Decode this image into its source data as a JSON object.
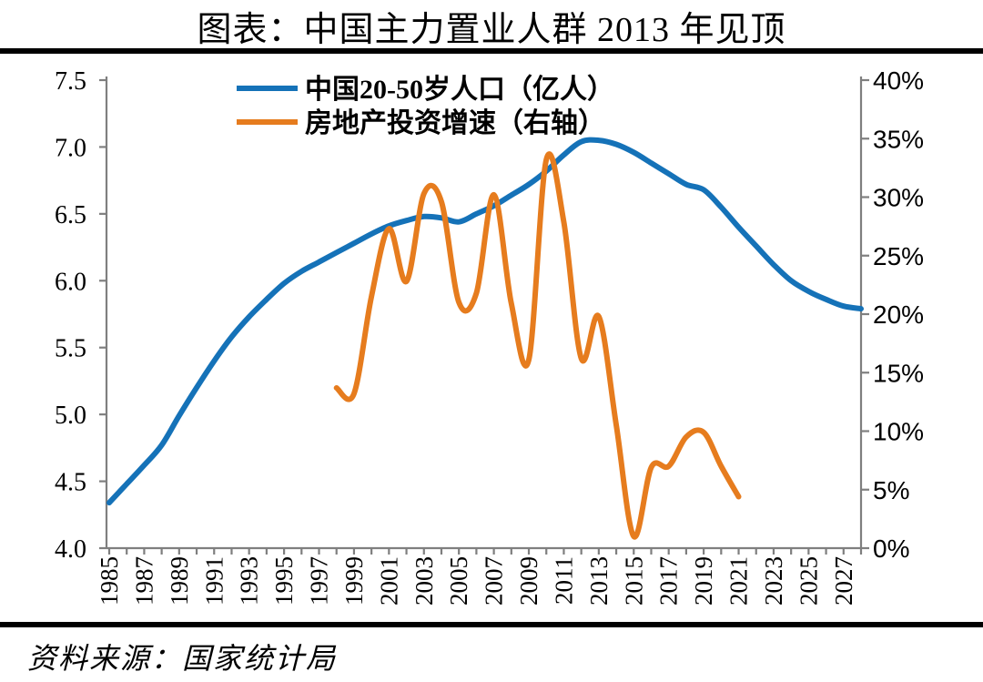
{
  "header": {
    "title": "图表：中国主力置业人群 2013 年见顶"
  },
  "footer": {
    "source": "资料来源：国家统计局"
  },
  "chart_data": {
    "type": "line",
    "title": "图表：中国主力置业人群 2013 年见顶",
    "legend_position": "top-center-inside",
    "grid": "off",
    "x_axis": {
      "range": [
        1985,
        2028
      ],
      "tick_step_years": 1,
      "tick_labels": [
        "1985",
        "1987",
        "1989",
        "1991",
        "1993",
        "1995",
        "1997",
        "1999",
        "2001",
        "2003",
        "2005",
        "2007",
        "2009",
        "2011",
        "2013",
        "2015",
        "2017",
        "2019",
        "2021",
        "2023",
        "2025",
        "2027"
      ]
    },
    "left_axis": {
      "range": [
        4.0,
        7.5
      ],
      "tick_labels": [
        "7.5",
        "7.0",
        "6.5",
        "6.0",
        "5.5",
        "5.0",
        "4.5",
        "4.0"
      ]
    },
    "right_axis": {
      "range": [
        0,
        40
      ],
      "tick_labels": [
        "40%",
        "35%",
        "30%",
        "25%",
        "20%",
        "15%",
        "10%",
        "5%",
        "0%"
      ]
    },
    "series": [
      {
        "name": "中国20-50岁人口（亿人）",
        "axis": "left",
        "color": "#1572b8",
        "x_start": 1985,
        "years_span": [
          1985,
          2028
        ],
        "values": [
          4.34,
          4.48,
          4.62,
          4.77,
          4.99,
          5.2,
          5.4,
          5.58,
          5.73,
          5.86,
          5.98,
          6.07,
          6.14,
          6.21,
          6.28,
          6.35,
          6.41,
          6.45,
          6.48,
          6.47,
          6.44,
          6.5,
          6.56,
          6.64,
          6.72,
          6.82,
          6.94,
          7.04,
          7.05,
          7.02,
          6.96,
          6.88,
          6.8,
          6.72,
          6.68,
          6.55,
          6.4,
          6.26,
          6.12,
          6.0,
          5.92,
          5.86,
          5.81,
          5.79
        ]
      },
      {
        "name": "房地产投资增速（右轴）",
        "axis": "right",
        "color": "#e67c1e",
        "x_start": 1998,
        "years_span": [
          1998,
          2021
        ],
        "values": [
          13.7,
          13.2,
          21.5,
          27.3,
          22.8,
          30.3,
          29.6,
          21.0,
          21.8,
          30.2,
          20.9,
          16.1,
          33.2,
          27.9,
          16.2,
          19.8,
          10.5,
          1.0,
          6.9,
          7.0,
          9.5,
          9.9,
          7.0,
          4.4
        ]
      }
    ]
  }
}
